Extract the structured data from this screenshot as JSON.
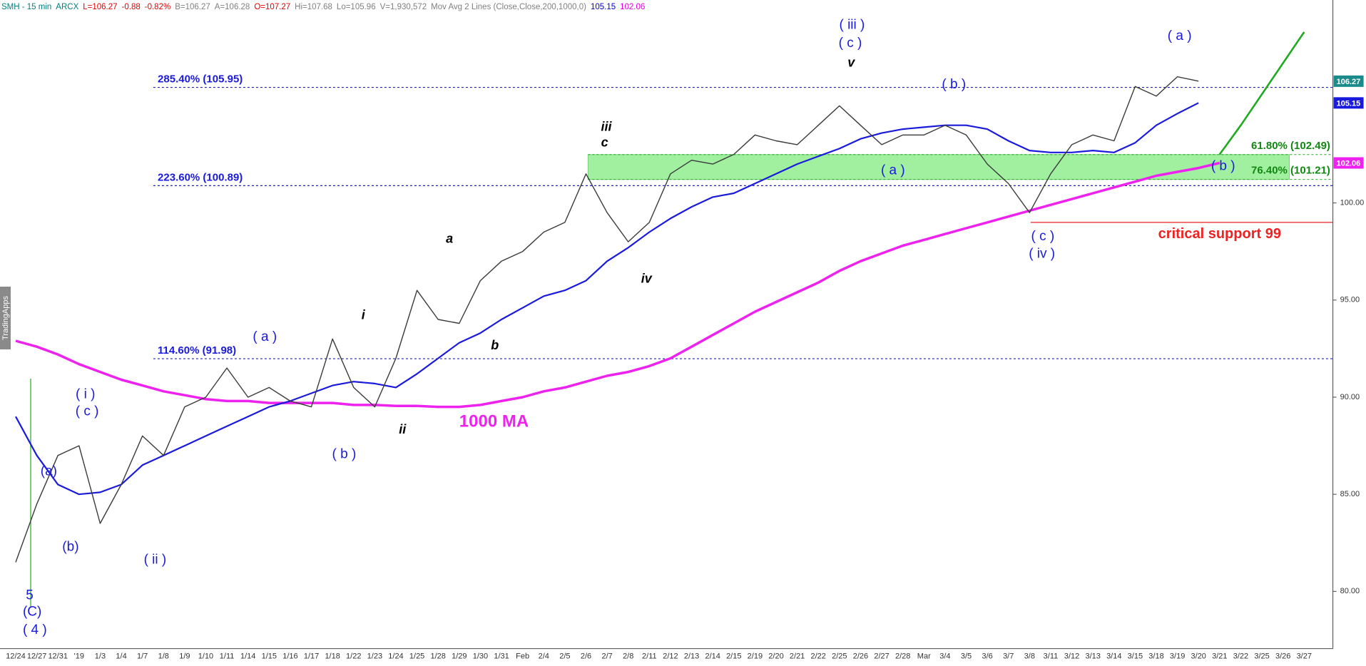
{
  "chart_data": {
    "type": "line",
    "header": [
      {
        "text": "SMH - 15 min",
        "color": "#008080"
      },
      {
        "text": "ARCX",
        "color": "#008080"
      },
      {
        "text": "L=106.27",
        "color": "#e00000"
      },
      {
        "text": "-0.88",
        "color": "#e00000"
      },
      {
        "text": "-0.82%",
        "color": "#e00000"
      },
      {
        "text": "B=106.27",
        "color": "#808080"
      },
      {
        "text": "A=106.28",
        "color": "#808080"
      },
      {
        "text": "O=107.27",
        "color": "#e00000"
      },
      {
        "text": "Hi=107.68",
        "color": "#808080"
      },
      {
        "text": "Lo=105.96",
        "color": "#808080"
      },
      {
        "text": "V=1,930,572",
        "color": "#808080"
      },
      {
        "text": "Mov Avg 2 Lines (Close,Close,200,1000,0)",
        "color": "#808080"
      },
      {
        "text": "105.15",
        "color": "#0000cc"
      },
      {
        "text": "102.06",
        "color": "#e000e0"
      }
    ],
    "watermark": "TradingApps",
    "categories": [
      "12/24",
      "12/27",
      "12/31",
      "'19",
      "1/3",
      "1/4",
      "1/7",
      "1/8",
      "1/9",
      "1/10",
      "1/11",
      "1/14",
      "1/15",
      "1/16",
      "1/17",
      "1/18",
      "1/22",
      "1/23",
      "1/24",
      "1/25",
      "1/28",
      "1/29",
      "1/30",
      "1/31",
      "Feb",
      "2/4",
      "2/5",
      "2/6",
      "2/7",
      "2/8",
      "2/11",
      "2/12",
      "2/13",
      "2/14",
      "2/15",
      "2/19",
      "2/20",
      "2/21",
      "2/22",
      "2/25",
      "2/26",
      "2/27",
      "2/28",
      "Mar",
      "3/4",
      "3/5",
      "3/6",
      "3/7",
      "3/8",
      "3/11",
      "3/12",
      "3/13",
      "3/14",
      "3/15",
      "3/18",
      "3/19",
      "3/20",
      "3/21",
      "3/22",
      "3/25",
      "3/26",
      "3/27"
    ],
    "price": {
      "color": "#3a3a3a",
      "values": [
        81.5,
        84.5,
        87,
        87.5,
        83.5,
        85.5,
        88,
        87,
        89.5,
        90,
        91.5,
        90,
        90.5,
        89.8,
        89.5,
        93,
        90.5,
        89.5,
        92,
        95.5,
        94,
        93.8,
        96,
        97,
        97.5,
        98.5,
        99,
        101.5,
        99.5,
        98,
        99,
        101.5,
        102.2,
        102,
        102.5,
        103.5,
        103.2,
        103,
        104,
        105,
        104,
        103,
        103.5,
        103.5,
        104,
        103.5,
        102,
        101,
        99.5,
        101.5,
        103,
        103.5,
        103.2,
        106,
        105.5,
        106.5,
        106.27,
        null,
        null,
        null,
        null,
        null
      ]
    },
    "ma200": {
      "color": "#1a1adc",
      "values": [
        89,
        87,
        85.5,
        85,
        85.1,
        85.5,
        86.5,
        87,
        87.5,
        88,
        88.5,
        89,
        89.5,
        89.8,
        90.2,
        90.6,
        90.8,
        90.7,
        90.5,
        91.2,
        92,
        92.8,
        93.3,
        94,
        94.6,
        95.2,
        95.5,
        96,
        97,
        97.7,
        98.5,
        99.2,
        99.8,
        100.3,
        100.5,
        101,
        101.5,
        102,
        102.4,
        102.8,
        103.3,
        103.6,
        103.8,
        103.9,
        104,
        104,
        103.8,
        103.2,
        102.7,
        102.6,
        102.6,
        102.7,
        102.6,
        103.1,
        104,
        104.6,
        105.15,
        null,
        null,
        null,
        null,
        null
      ]
    },
    "ma1000": {
      "color": "#ee22ee",
      "values": [
        92.9,
        92.6,
        92.2,
        91.7,
        91.3,
        90.9,
        90.6,
        90.3,
        90.1,
        89.9,
        89.8,
        89.8,
        89.7,
        89.7,
        89.7,
        89.7,
        89.6,
        89.6,
        89.55,
        89.55,
        89.5,
        89.5,
        89.6,
        89.8,
        90,
        90.3,
        90.5,
        90.8,
        91.1,
        91.3,
        91.6,
        92,
        92.6,
        93.2,
        93.8,
        94.4,
        94.9,
        95.4,
        95.9,
        96.5,
        97,
        97.4,
        97.8,
        98.1,
        98.4,
        98.7,
        99,
        99.3,
        99.6,
        99.9,
        100.2,
        100.5,
        100.8,
        101.1,
        101.4,
        101.6,
        101.8,
        102.06,
        null,
        null,
        null,
        null
      ]
    },
    "projection": {
      "color": "#22aa22",
      "values": [
        null,
        null,
        null,
        null,
        null,
        null,
        null,
        null,
        null,
        null,
        null,
        null,
        null,
        null,
        null,
        null,
        null,
        null,
        null,
        null,
        null,
        null,
        null,
        null,
        null,
        null,
        null,
        null,
        null,
        null,
        null,
        null,
        null,
        null,
        null,
        null,
        null,
        null,
        null,
        null,
        null,
        null,
        null,
        null,
        null,
        null,
        null,
        null,
        null,
        null,
        null,
        null,
        null,
        null,
        null,
        null,
        null,
        102.5,
        104,
        105.6,
        107.2,
        108.8
      ]
    },
    "ylim": [
      77.05,
      110.45
    ],
    "yticks": [
      {
        "value": 80,
        "label": "80.00"
      },
      {
        "value": 85,
        "label": "85.00"
      },
      {
        "value": 90,
        "label": "90.00"
      },
      {
        "value": 95,
        "label": "95.00"
      },
      {
        "value": 100,
        "label": "100.00"
      }
    ],
    "fib_levels": [
      {
        "label": "285.40% (105.95)",
        "value": 105.95
      },
      {
        "label": "223.60% (100.89)",
        "value": 100.89
      },
      {
        "label": "114.60% (91.98)",
        "value": 91.98
      }
    ],
    "zone": {
      "color": "#a0f0a0",
      "levels": [
        {
          "label": "61.80% (102.49)",
          "value": 102.49
        },
        {
          "label": "76.40% (101.21)",
          "value": 101.21
        }
      ]
    },
    "support": {
      "label": "critical support 99",
      "value": 99,
      "color": "#ee2222"
    },
    "price_tags": [
      106.27,
      105.15,
      102.06
    ],
    "price_tag_colors": [
      "#1a8a8a",
      "#1a1adc",
      "#ee22ee"
    ],
    "annotations": [
      {
        "text": "( iii )",
        "color": "#1a1adc"
      },
      {
        "text": "( c )",
        "color": "#1a1adc"
      },
      {
        "text": "v",
        "color": "#000000"
      },
      {
        "text": "( a )",
        "color": "#1a1adc"
      },
      {
        "text": "( b )",
        "color": "#1a1adc"
      },
      {
        "text": "iii",
        "color": "#000000"
      },
      {
        "text": "c",
        "color": "#000000"
      },
      {
        "text": "( a )",
        "color": "#1a1adc"
      },
      {
        "text": "( b )",
        "color": "#1a1adc"
      },
      {
        "text": "( c )",
        "color": "#1a1adc"
      },
      {
        "text": "( iv )",
        "color": "#1a1adc"
      },
      {
        "text": "a",
        "color": "#000000"
      },
      {
        "text": "iv",
        "color": "#000000"
      },
      {
        "text": "i",
        "color": "#000000"
      },
      {
        "text": "( a )",
        "color": "#1a1adc"
      },
      {
        "text": "b",
        "color": "#000000"
      },
      {
        "text": "ii",
        "color": "#000000"
      },
      {
        "text": "( i )",
        "color": "#1a1adc"
      },
      {
        "text": "( c )",
        "color": "#1a1adc"
      },
      {
        "text": "(a)",
        "color": "#1a1adc"
      },
      {
        "text": "( b )",
        "color": "#1a1adc"
      },
      {
        "text": "1000 MA",
        "color": "#ee22ee"
      },
      {
        "text": "(b)",
        "color": "#1a1adc"
      },
      {
        "text": "( ii )",
        "color": "#1a1adc"
      },
      {
        "text": "5",
        "color": "#1a1adc"
      },
      {
        "text": "(C)",
        "color": "#1a1adc"
      },
      {
        "text": "( 4 )",
        "color": "#1a1adc"
      }
    ]
  }
}
